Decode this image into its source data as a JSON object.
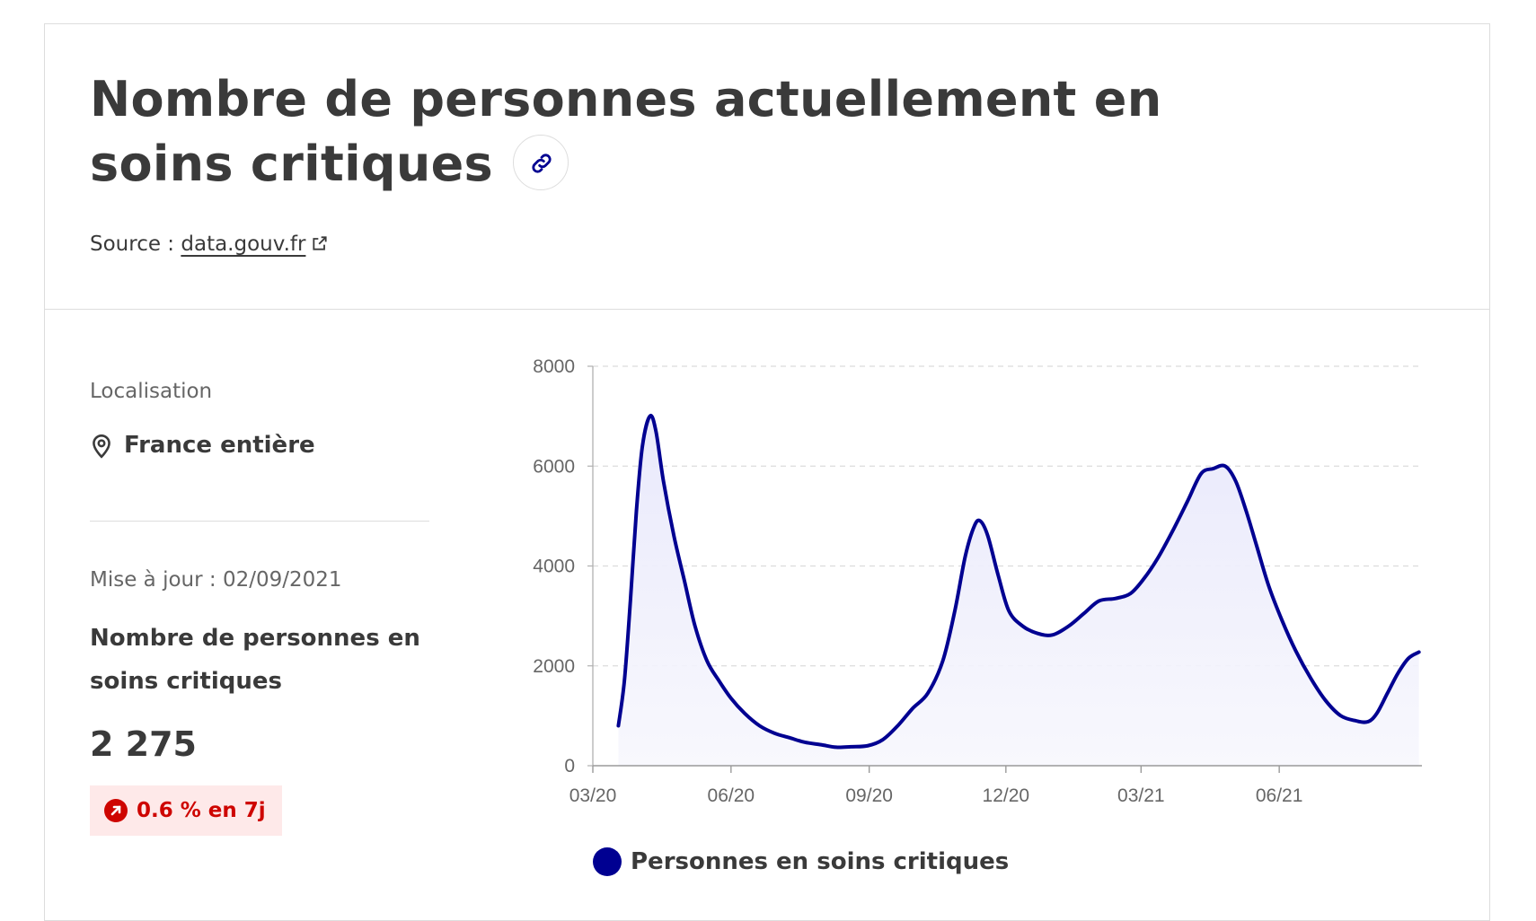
{
  "header": {
    "title": "Nombre de personnes actuellement en soins critiques",
    "source_prefix": "Source : ",
    "source_link": "data.gouv.fr"
  },
  "sidebar": {
    "localisation_label": "Localisation",
    "localisation_value": "France entière",
    "update_label": "Mise à jour : 02/09/2021",
    "metric_title": "Nombre de personnes en soins critiques",
    "metric_value": "2 275",
    "trend_badge": "0.6 % en 7j"
  },
  "colors": {
    "series": "#000091",
    "area_fill": "#e8e8fb",
    "trend_up": "#ce0500",
    "trend_bg": "#fee9e9"
  },
  "icons": [
    "link-icon",
    "external-link-icon",
    "location-pin-icon",
    "arrow-up-right-icon"
  ],
  "chart_data": {
    "type": "area",
    "title": "",
    "xlabel": "",
    "ylabel": "",
    "ylim": [
      0,
      8000
    ],
    "y_ticks": [
      0,
      2000,
      4000,
      6000,
      8000
    ],
    "x_ticks": [
      "03/20",
      "06/20",
      "09/20",
      "12/20",
      "03/21",
      "06/21"
    ],
    "grid": "horizontal dashed",
    "legend": "bottom",
    "series": [
      {
        "name": "Personnes en soins critiques",
        "points": [
          [
            "2020-03-18",
            800
          ],
          [
            "2020-03-22",
            1700
          ],
          [
            "2020-03-26",
            3300
          ],
          [
            "2020-03-30",
            5100
          ],
          [
            "2020-04-03",
            6400
          ],
          [
            "2020-04-08",
            7000
          ],
          [
            "2020-04-12",
            6700
          ],
          [
            "2020-04-17",
            5700
          ],
          [
            "2020-04-24",
            4600
          ],
          [
            "2020-05-01",
            3700
          ],
          [
            "2020-05-08",
            2800
          ],
          [
            "2020-05-16",
            2100
          ],
          [
            "2020-05-24",
            1700
          ],
          [
            "2020-06-01",
            1350
          ],
          [
            "2020-06-10",
            1050
          ],
          [
            "2020-06-20",
            800
          ],
          [
            "2020-06-30",
            650
          ],
          [
            "2020-07-10",
            560
          ],
          [
            "2020-07-20",
            470
          ],
          [
            "2020-07-31",
            420
          ],
          [
            "2020-08-10",
            370
          ],
          [
            "2020-08-20",
            380
          ],
          [
            "2020-08-31",
            400
          ],
          [
            "2020-09-10",
            520
          ],
          [
            "2020-09-20",
            800
          ],
          [
            "2020-09-30",
            1150
          ],
          [
            "2020-10-10",
            1450
          ],
          [
            "2020-10-20",
            2100
          ],
          [
            "2020-10-28",
            3100
          ],
          [
            "2020-11-04",
            4200
          ],
          [
            "2020-11-10",
            4800
          ],
          [
            "2020-11-14",
            4900
          ],
          [
            "2020-11-19",
            4600
          ],
          [
            "2020-11-26",
            3800
          ],
          [
            "2020-12-03",
            3100
          ],
          [
            "2020-12-12",
            2800
          ],
          [
            "2020-12-22",
            2650
          ],
          [
            "2021-01-01",
            2620
          ],
          [
            "2021-01-12",
            2800
          ],
          [
            "2021-01-22",
            3050
          ],
          [
            "2021-02-01",
            3300
          ],
          [
            "2021-02-12",
            3350
          ],
          [
            "2021-02-22",
            3450
          ],
          [
            "2021-03-03",
            3750
          ],
          [
            "2021-03-12",
            4150
          ],
          [
            "2021-03-22",
            4700
          ],
          [
            "2021-04-01",
            5300
          ],
          [
            "2021-04-10",
            5850
          ],
          [
            "2021-04-18",
            5950
          ],
          [
            "2021-04-26",
            6000
          ],
          [
            "2021-05-03",
            5700
          ],
          [
            "2021-05-10",
            5100
          ],
          [
            "2021-05-17",
            4400
          ],
          [
            "2021-05-25",
            3600
          ],
          [
            "2021-06-03",
            2900
          ],
          [
            "2021-06-12",
            2300
          ],
          [
            "2021-06-22",
            1750
          ],
          [
            "2021-07-02",
            1300
          ],
          [
            "2021-07-12",
            1000
          ],
          [
            "2021-07-22",
            900
          ],
          [
            "2021-07-30",
            880
          ],
          [
            "2021-08-05",
            1050
          ],
          [
            "2021-08-12",
            1450
          ],
          [
            "2021-08-19",
            1850
          ],
          [
            "2021-08-26",
            2150
          ],
          [
            "2021-09-02",
            2275
          ]
        ]
      }
    ]
  }
}
